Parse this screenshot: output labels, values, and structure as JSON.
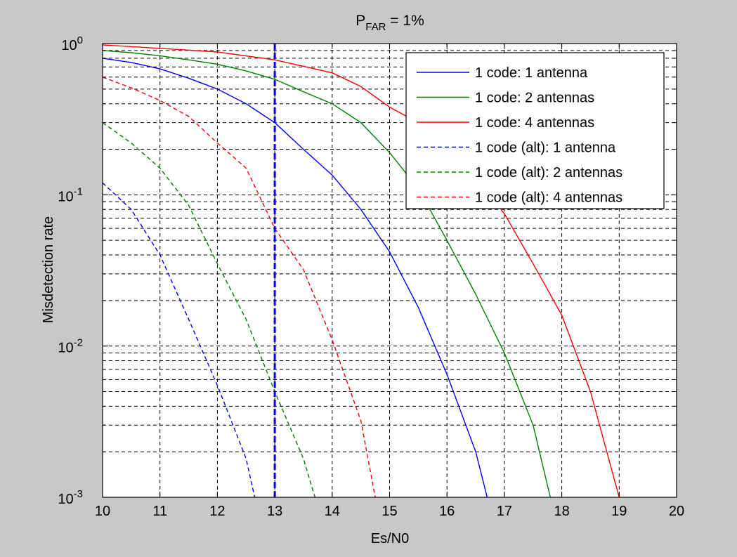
{
  "chart_data": {
    "type": "line",
    "title_main": "P",
    "title_sub": "FAR",
    "title_rest": " = 1%",
    "xlabel": "Es/N0",
    "ylabel": "Misdetection rate",
    "xlim": [
      10,
      20
    ],
    "ylim": [
      0.001,
      1
    ],
    "yscale": "log",
    "grid": true,
    "legend_location": "top-right",
    "x_ticks": [
      "10",
      "11",
      "12",
      "13",
      "14",
      "15",
      "16",
      "17",
      "18",
      "19",
      "20"
    ],
    "y_ticks": [
      {
        "base": "10",
        "exp": "-3"
      },
      {
        "base": "10",
        "exp": "-2"
      },
      {
        "base": "10",
        "exp": "-1"
      },
      {
        "base": "10",
        "exp": "0"
      }
    ],
    "vertical_marker": {
      "x": 13,
      "color": "#0000ff",
      "style": "dashed"
    },
    "series": [
      {
        "name": "1 code: 1 antenna",
        "color": "#0000ff",
        "style": "solid",
        "x": [
          10,
          10.5,
          11,
          11.5,
          12,
          12.5,
          13,
          13.5,
          14,
          14.5,
          15,
          15.5,
          16,
          16.5,
          16.7
        ],
        "y": [
          0.8,
          0.75,
          0.68,
          0.59,
          0.5,
          0.4,
          0.3,
          0.2,
          0.135,
          0.08,
          0.042,
          0.018,
          0.0065,
          0.002,
          0.001
        ]
      },
      {
        "name": "1 code: 2 antennas",
        "color": "#008000",
        "style": "solid",
        "x": [
          10,
          10.5,
          11,
          11.5,
          12,
          12.5,
          13,
          13.5,
          14,
          14.5,
          15,
          15.5,
          16,
          16.5,
          17,
          17.5,
          17.8
        ],
        "y": [
          0.9,
          0.87,
          0.83,
          0.78,
          0.73,
          0.66,
          0.58,
          0.48,
          0.4,
          0.3,
          0.19,
          0.11,
          0.05,
          0.022,
          0.009,
          0.003,
          0.001
        ]
      },
      {
        "name": "1 code: 4 antennas",
        "color": "#ff0000",
        "style": "solid",
        "x": [
          10,
          11,
          12,
          13,
          14,
          14.5,
          15,
          15.5,
          16,
          16.5,
          17,
          17.5,
          18,
          18.5,
          19
        ],
        "y": [
          0.98,
          0.93,
          0.88,
          0.78,
          0.64,
          0.52,
          0.38,
          0.3,
          0.21,
          0.13,
          0.075,
          0.035,
          0.016,
          0.005,
          0.001
        ]
      },
      {
        "name": "1 code (alt): 1 antenna",
        "color": "#0000ff",
        "style": "dashed",
        "x": [
          10,
          10.5,
          11,
          11.5,
          12,
          12.5,
          12.65
        ],
        "y": [
          0.12,
          0.08,
          0.04,
          0.015,
          0.0055,
          0.0018,
          0.001
        ]
      },
      {
        "name": "1 code (alt): 2 antennas",
        "color": "#008000",
        "style": "dashed",
        "x": [
          10,
          10.5,
          11,
          11.5,
          12,
          12.5,
          13,
          13.5,
          13.7
        ],
        "y": [
          0.3,
          0.22,
          0.15,
          0.085,
          0.035,
          0.015,
          0.005,
          0.0018,
          0.001
        ]
      },
      {
        "name": "1 code (alt): 4 antennas",
        "color": "#ff0000",
        "style": "dashed",
        "x": [
          10,
          10.5,
          11,
          11.5,
          12,
          12.5,
          13,
          13.5,
          14,
          14.5,
          14.75
        ],
        "y": [
          0.6,
          0.51,
          0.42,
          0.33,
          0.22,
          0.15,
          0.06,
          0.032,
          0.011,
          0.0032,
          0.001
        ]
      }
    ]
  }
}
